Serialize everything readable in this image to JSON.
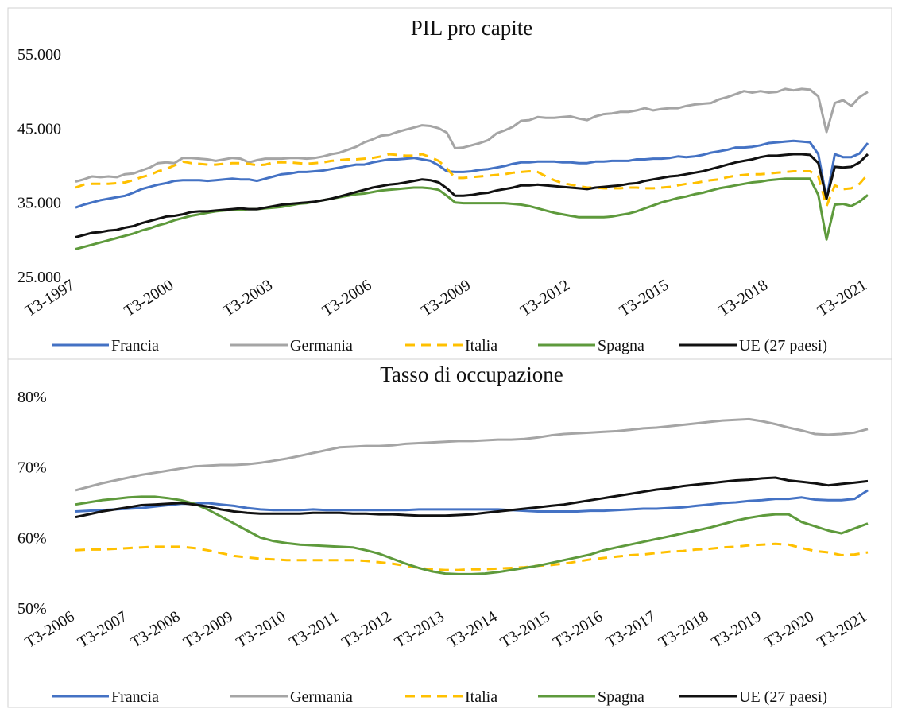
{
  "chart_data": [
    {
      "type": "line",
      "title": "PIL pro capite",
      "categories": [
        "T3-1997",
        null,
        null,
        null,
        null,
        null,
        null,
        null,
        null,
        null,
        null,
        null,
        "T3-2000",
        null,
        null,
        null,
        null,
        null,
        null,
        null,
        null,
        null,
        null,
        null,
        "T3-2003",
        null,
        null,
        null,
        null,
        null,
        null,
        null,
        null,
        null,
        null,
        null,
        "T3-2006",
        null,
        null,
        null,
        null,
        null,
        null,
        null,
        null,
        null,
        null,
        null,
        "T3-2009",
        null,
        null,
        null,
        null,
        null,
        null,
        null,
        null,
        null,
        null,
        null,
        "T3-2012",
        null,
        null,
        null,
        null,
        null,
        null,
        null,
        null,
        null,
        null,
        null,
        "T3-2015",
        null,
        null,
        null,
        null,
        null,
        null,
        null,
        null,
        null,
        null,
        null,
        "T3-2018",
        null,
        null,
        null,
        null,
        null,
        null,
        null,
        null,
        null,
        null,
        null,
        "T3-2021"
      ],
      "ylim": [
        25000,
        55000
      ],
      "yticks": [
        {
          "value": 25000,
          "label": "25.000"
        },
        {
          "value": 35000,
          "label": "35.000"
        },
        {
          "value": 45000,
          "label": "45.000"
        },
        {
          "value": 55000,
          "label": "55.000"
        }
      ],
      "grid": false,
      "series": [
        {
          "name": "Francia",
          "color": "#4472c4",
          "values": [
            34300,
            34700,
            35000,
            35300,
            35500,
            35700,
            35900,
            36300,
            36800,
            37100,
            37400,
            37600,
            37900,
            38000,
            38000,
            38000,
            37900,
            38000,
            38100,
            38200,
            38100,
            38100,
            37900,
            38200,
            38500,
            38800,
            38900,
            39100,
            39100,
            39200,
            39300,
            39500,
            39700,
            39900,
            40100,
            40100,
            40400,
            40600,
            40800,
            40800,
            40900,
            41000,
            40800,
            40600,
            40000,
            39200,
            39100,
            39100,
            39200,
            39400,
            39500,
            39700,
            39900,
            40200,
            40400,
            40400,
            40500,
            40500,
            40500,
            40400,
            40400,
            40300,
            40300,
            40500,
            40500,
            40600,
            40600,
            40600,
            40800,
            40800,
            40900,
            40900,
            41000,
            41200,
            41100,
            41200,
            41400,
            41700,
            41900,
            42100,
            42400,
            42400,
            42500,
            42700,
            43000,
            43100,
            43200,
            43300,
            43200,
            43100,
            41500,
            35500,
            41500,
            41100,
            41100,
            41600,
            43000
          ]
        },
        {
          "name": "Germania",
          "color": "#a5a5a5",
          "values": [
            37800,
            38100,
            38500,
            38400,
            38500,
            38400,
            38800,
            38900,
            39300,
            39700,
            40300,
            40400,
            40300,
            41000,
            41000,
            40900,
            40800,
            40600,
            40800,
            41000,
            40900,
            40400,
            40700,
            40900,
            40900,
            40900,
            41000,
            41000,
            40900,
            41000,
            41200,
            41500,
            41700,
            42100,
            42500,
            43100,
            43500,
            44000,
            44100,
            44500,
            44800,
            45100,
            45400,
            45300,
            45000,
            44400,
            42300,
            42400,
            42700,
            43000,
            43400,
            44300,
            44700,
            45200,
            46000,
            46100,
            46500,
            46400,
            46400,
            46500,
            46600,
            46300,
            46100,
            46600,
            46900,
            47000,
            47200,
            47200,
            47400,
            47700,
            47400,
            47600,
            47700,
            47700,
            48000,
            48200,
            48300,
            48400,
            48900,
            49200,
            49600,
            50000,
            49800,
            50000,
            49800,
            49900,
            50300,
            50100,
            50300,
            50200,
            49300,
            44500,
            48400,
            48800,
            48000,
            49200,
            49900
          ]
        },
        {
          "name": "Italia",
          "color": "#ffc000",
          "line_style": "dashed",
          "values": [
            37000,
            37400,
            37500,
            37500,
            37500,
            37600,
            37700,
            38000,
            38400,
            38700,
            39200,
            39500,
            40000,
            40500,
            40300,
            40200,
            40100,
            40100,
            40200,
            40300,
            40300,
            40200,
            40000,
            40100,
            40400,
            40400,
            40400,
            40300,
            40200,
            40300,
            40400,
            40600,
            40700,
            40800,
            40800,
            40900,
            41000,
            41200,
            41500,
            41400,
            41300,
            41300,
            41500,
            41100,
            40600,
            39600,
            38300,
            38300,
            38400,
            38500,
            38600,
            38700,
            38800,
            39000,
            39100,
            39200,
            39100,
            38500,
            38000,
            37600,
            37400,
            37200,
            37000,
            37000,
            36900,
            36900,
            36900,
            37000,
            37000,
            36900,
            36900,
            37000,
            37100,
            37300,
            37500,
            37600,
            37800,
            38000,
            38100,
            38400,
            38600,
            38700,
            38800,
            38800,
            38900,
            39000,
            39100,
            39200,
            39200,
            39200,
            38500,
            34500,
            37300,
            36800,
            36900,
            37500,
            38800
          ]
        },
        {
          "name": "Spagna",
          "color": "#5e9a3c",
          "values": [
            28700,
            29000,
            29300,
            29600,
            29900,
            30200,
            30500,
            30800,
            31200,
            31500,
            31900,
            32200,
            32600,
            32900,
            33200,
            33400,
            33600,
            33800,
            33900,
            34000,
            34000,
            34100,
            34100,
            34200,
            34300,
            34400,
            34600,
            34800,
            34900,
            35100,
            35300,
            35500,
            35700,
            35900,
            36100,
            36200,
            36400,
            36600,
            36700,
            36800,
            36900,
            37000,
            37000,
            36900,
            36700,
            35900,
            35000,
            34900,
            34900,
            34900,
            34900,
            34900,
            34900,
            34800,
            34700,
            34500,
            34200,
            33900,
            33600,
            33400,
            33200,
            33000,
            33000,
            33000,
            33000,
            33100,
            33300,
            33500,
            33800,
            34200,
            34600,
            35000,
            35300,
            35600,
            35800,
            36100,
            36300,
            36600,
            36900,
            37100,
            37300,
            37500,
            37700,
            37800,
            38000,
            38100,
            38200,
            38200,
            38200,
            38200,
            36000,
            30000,
            34700,
            34800,
            34500,
            35100,
            36000
          ]
        },
        {
          "name": "UE (27 paesi)",
          "color": "#111111",
          "values": [
            30300,
            30600,
            30900,
            31000,
            31200,
            31300,
            31600,
            31800,
            32200,
            32500,
            32800,
            33100,
            33200,
            33400,
            33700,
            33800,
            33800,
            33900,
            34000,
            34100,
            34200,
            34100,
            34100,
            34300,
            34500,
            34700,
            34800,
            34900,
            35000,
            35100,
            35300,
            35500,
            35800,
            36100,
            36400,
            36700,
            37000,
            37200,
            37400,
            37500,
            37700,
            37900,
            38100,
            38000,
            37700,
            36900,
            35900,
            35900,
            36000,
            36200,
            36300,
            36600,
            36800,
            37000,
            37300,
            37300,
            37400,
            37300,
            37200,
            37100,
            37000,
            36900,
            36800,
            37000,
            37100,
            37200,
            37300,
            37500,
            37600,
            37900,
            38100,
            38300,
            38500,
            38600,
            38800,
            39000,
            39200,
            39500,
            39800,
            40100,
            40400,
            40600,
            40800,
            41100,
            41300,
            41300,
            41400,
            41500,
            41500,
            41400,
            40300,
            35500,
            39800,
            39700,
            39800,
            40400,
            41500
          ]
        }
      ]
    },
    {
      "type": "line",
      "title": "Tasso di occupazione",
      "categories": [
        "T3-2006",
        null,
        null,
        null,
        "T3-2007",
        null,
        null,
        null,
        "T3-2008",
        null,
        null,
        null,
        "T3-2009",
        null,
        null,
        null,
        "T3-2010",
        null,
        null,
        null,
        "T3-2011",
        null,
        null,
        null,
        "T3-2012",
        null,
        null,
        null,
        "T3-2013",
        null,
        null,
        null,
        "T3-2014",
        null,
        null,
        null,
        "T3-2015",
        null,
        null,
        null,
        "T3-2016",
        null,
        null,
        null,
        "T3-2017",
        null,
        null,
        null,
        "T3-2018",
        null,
        null,
        null,
        "T3-2019",
        null,
        null,
        null,
        "T3-2020",
        null,
        null,
        null,
        "T3-2021"
      ],
      "ylim": [
        50,
        80
      ],
      "yticks": [
        {
          "value": 50,
          "label": "50%"
        },
        {
          "value": 60,
          "label": "60%"
        },
        {
          "value": 70,
          "label": "70%"
        },
        {
          "value": 80,
          "label": "80%"
        }
      ],
      "grid": false,
      "series": [
        {
          "name": "Francia",
          "color": "#4472c4",
          "values": [
            63.7,
            63.8,
            63.9,
            64.0,
            64.1,
            64.2,
            64.4,
            64.6,
            64.8,
            64.8,
            64.9,
            64.7,
            64.5,
            64.2,
            64.0,
            63.9,
            63.9,
            63.9,
            64.0,
            63.9,
            63.9,
            63.9,
            63.9,
            63.9,
            63.9,
            63.9,
            64.0,
            64.0,
            64.0,
            64.0,
            64.0,
            64.0,
            64.0,
            63.9,
            63.8,
            63.7,
            63.7,
            63.7,
            63.7,
            63.8,
            63.8,
            63.9,
            64.0,
            64.1,
            64.1,
            64.2,
            64.3,
            64.5,
            64.7,
            64.9,
            65.0,
            65.2,
            65.3,
            65.5,
            65.5,
            65.7,
            65.4,
            65.3,
            65.3,
            65.5,
            66.7
          ]
        },
        {
          "name": "Germania",
          "color": "#a5a5a5",
          "values": [
            66.7,
            67.2,
            67.7,
            68.1,
            68.5,
            68.9,
            69.2,
            69.5,
            69.8,
            70.1,
            70.2,
            70.3,
            70.3,
            70.4,
            70.6,
            70.9,
            71.2,
            71.6,
            72.0,
            72.4,
            72.8,
            72.9,
            73.0,
            73.0,
            73.1,
            73.3,
            73.4,
            73.5,
            73.6,
            73.7,
            73.7,
            73.8,
            73.9,
            73.9,
            74.0,
            74.2,
            74.5,
            74.7,
            74.8,
            74.9,
            75.0,
            75.1,
            75.3,
            75.5,
            75.6,
            75.8,
            76.0,
            76.2,
            76.4,
            76.6,
            76.7,
            76.8,
            76.5,
            76.1,
            75.6,
            75.2,
            74.7,
            74.6,
            74.7,
            74.9,
            75.4
          ]
        },
        {
          "name": "Italia",
          "color": "#ffc000",
          "line_style": "dashed",
          "values": [
            58.2,
            58.3,
            58.3,
            58.4,
            58.5,
            58.6,
            58.7,
            58.7,
            58.7,
            58.5,
            58.2,
            57.8,
            57.4,
            57.2,
            57.0,
            56.9,
            56.8,
            56.8,
            56.8,
            56.8,
            56.8,
            56.8,
            56.7,
            56.5,
            56.3,
            56.0,
            55.7,
            55.5,
            55.4,
            55.4,
            55.5,
            55.5,
            55.6,
            55.7,
            55.8,
            56.0,
            56.1,
            56.3,
            56.6,
            56.9,
            57.1,
            57.3,
            57.5,
            57.6,
            57.8,
            58.0,
            58.1,
            58.3,
            58.4,
            58.6,
            58.7,
            58.9,
            59.0,
            59.1,
            59.0,
            58.5,
            58.1,
            57.9,
            57.5,
            57.6,
            57.9
          ]
        },
        {
          "name": "Spagna",
          "color": "#5e9a3c",
          "values": [
            64.7,
            65.0,
            65.3,
            65.5,
            65.7,
            65.8,
            65.8,
            65.6,
            65.3,
            64.8,
            64.0,
            63.0,
            62.0,
            61.0,
            60.0,
            59.5,
            59.2,
            59.0,
            58.9,
            58.8,
            58.7,
            58.6,
            58.2,
            57.7,
            57.0,
            56.3,
            55.7,
            55.2,
            54.9,
            54.8,
            54.8,
            54.9,
            55.1,
            55.4,
            55.7,
            56.0,
            56.4,
            56.8,
            57.2,
            57.6,
            58.2,
            58.6,
            59.0,
            59.4,
            59.8,
            60.2,
            60.6,
            61.0,
            61.4,
            61.9,
            62.4,
            62.8,
            63.1,
            63.3,
            63.3,
            62.2,
            61.6,
            61.0,
            60.6,
            61.3,
            62.0
          ]
        },
        {
          "name": "UE (27 paesi)",
          "color": "#111111",
          "values": [
            62.9,
            63.3,
            63.7,
            64.0,
            64.3,
            64.6,
            64.7,
            64.8,
            64.9,
            64.7,
            64.4,
            64.0,
            63.7,
            63.5,
            63.4,
            63.4,
            63.4,
            63.4,
            63.5,
            63.5,
            63.5,
            63.4,
            63.4,
            63.3,
            63.3,
            63.2,
            63.1,
            63.1,
            63.1,
            63.2,
            63.3,
            63.5,
            63.7,
            63.9,
            64.1,
            64.3,
            64.5,
            64.7,
            65.0,
            65.3,
            65.6,
            65.9,
            66.2,
            66.5,
            66.8,
            67.0,
            67.3,
            67.5,
            67.7,
            67.9,
            68.1,
            68.2,
            68.4,
            68.5,
            68.1,
            67.9,
            67.7,
            67.4,
            67.6,
            67.8,
            68.0
          ]
        }
      ]
    }
  ]
}
